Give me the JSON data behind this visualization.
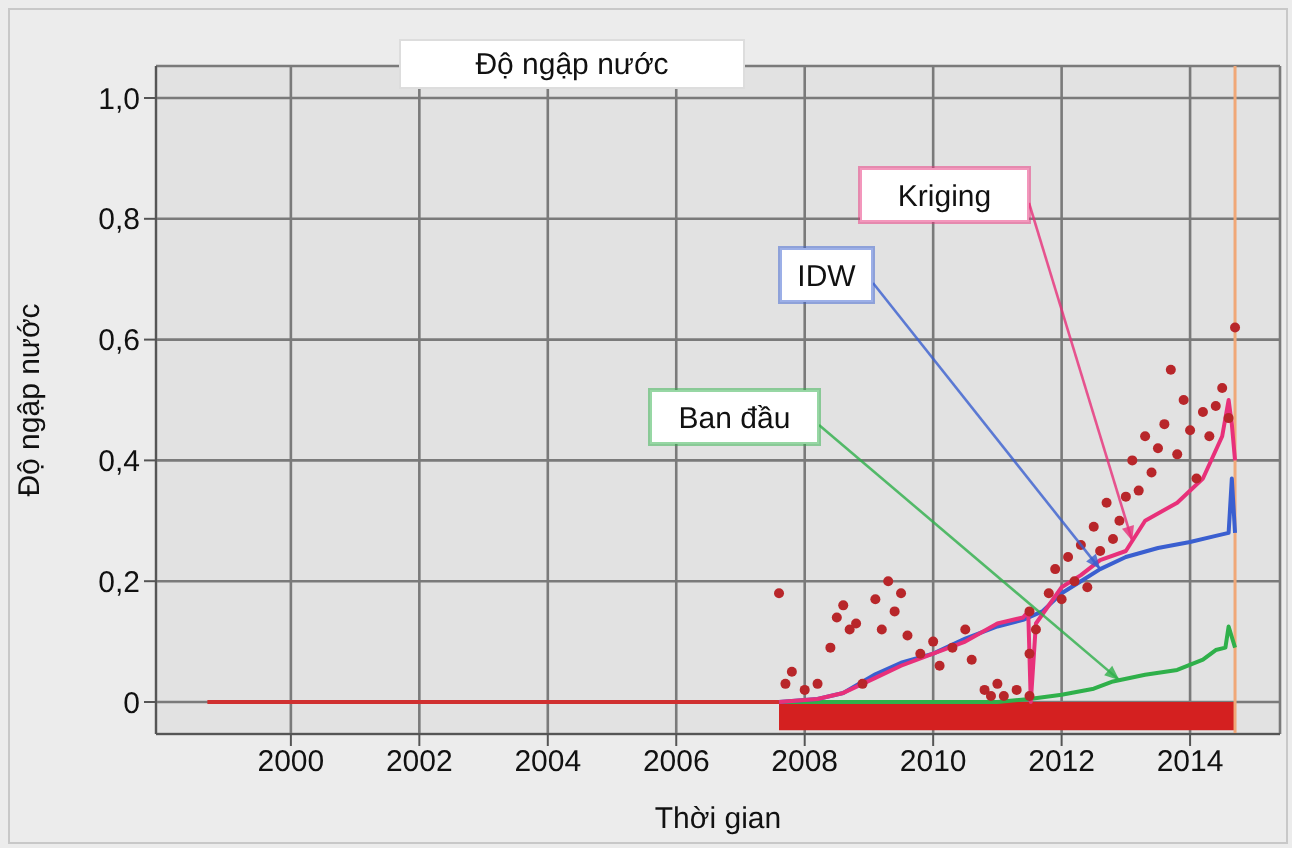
{
  "chart_data": {
    "type": "line",
    "title": "Độ ngập nước",
    "xlabel": "Thời gian",
    "ylabel": "Độ ngập nước",
    "xlim": [
      1997.9,
      2015.4
    ],
    "ylim": [
      -0.053,
      1.053
    ],
    "xticks": [
      2000,
      2002,
      2004,
      2006,
      2008,
      2010,
      2012,
      2014
    ],
    "yticks": [
      0,
      {
        "value": 0.2,
        "label": "0,2"
      },
      {
        "value": 0.4,
        "label": "0,4"
      },
      {
        "value": 0.6,
        "label": "0,6"
      },
      {
        "value": 0.8,
        "label": "0,8"
      },
      {
        "value": 1,
        "label": "1,0"
      }
    ],
    "grid": true,
    "ref_lines": [
      {
        "axis": "x",
        "value": 2014.7,
        "color": "#f0a878"
      }
    ],
    "series": [
      {
        "type": "line",
        "color": "#d03030",
        "x": [
          1998.7,
          2007.6
        ],
        "values": [
          0,
          0
        ]
      },
      {
        "type": "area",
        "color": "#d42020",
        "x": [
          2007.6,
          2014.7
        ],
        "values": [
          -0.045,
          -0.045
        ]
      },
      {
        "name": "Ban đầu",
        "color": "#2fb04a",
        "x": [
          2007.6,
          2009,
          2010,
          2011,
          2011.5,
          2012,
          2012.5,
          2012.8,
          2013.3,
          2013.8,
          2014.2,
          2014.4,
          2014.55,
          2014.6,
          2014.7
        ],
        "values": [
          0,
          0,
          0,
          0,
          0.005,
          0.012,
          0.022,
          0.034,
          0.045,
          0.053,
          0.07,
          0.086,
          0.09,
          0.125,
          0.09
        ]
      },
      {
        "name": "IDW",
        "color": "#3a5fd0",
        "x": [
          2007.6,
          2008.2,
          2008.6,
          2009.1,
          2009.5,
          2010,
          2010.5,
          2011,
          2011.4,
          2011.7,
          2012,
          2012.3,
          2012.6,
          2013,
          2013.5,
          2014,
          2014.4,
          2014.6,
          2014.65,
          2014.7
        ],
        "values": [
          0,
          0.005,
          0.015,
          0.046,
          0.065,
          0.08,
          0.105,
          0.125,
          0.136,
          0.15,
          0.18,
          0.2,
          0.22,
          0.24,
          0.255,
          0.265,
          0.275,
          0.28,
          0.37,
          0.28
        ]
      },
      {
        "name": "Kriging",
        "color": "#e8307a",
        "x": [
          2007.6,
          2008.2,
          2008.6,
          2009.1,
          2009.5,
          2010,
          2010.5,
          2011,
          2011.4,
          2011.48,
          2011.52,
          2011.6,
          2012,
          2012.3,
          2012.6,
          2013,
          2013.3,
          2013.8,
          2014.2,
          2014.5,
          2014.6,
          2014.65,
          2014.7
        ],
        "values": [
          0,
          0.005,
          0.015,
          0.04,
          0.06,
          0.08,
          0.1,
          0.13,
          0.14,
          0.15,
          0,
          0.13,
          0.19,
          0.21,
          0.235,
          0.25,
          0.3,
          0.33,
          0.37,
          0.44,
          0.5,
          0.46,
          0.4
        ]
      },
      {
        "type": "scatter",
        "color": "#b8262a",
        "x": [
          2007.6,
          2007.7,
          2007.8,
          2008,
          2008.2,
          2008.4,
          2008.5,
          2008.6,
          2008.7,
          2008.8,
          2008.9,
          2009.1,
          2009.2,
          2009.3,
          2009.4,
          2009.5,
          2009.6,
          2009.8,
          2010,
          2010.1,
          2010.3,
          2010.5,
          2010.6,
          2010.8,
          2010.9,
          2011,
          2011.1,
          2011.3,
          2011.5,
          2011.5,
          2011.5,
          2011.6,
          2011.8,
          2011.9,
          2012,
          2012.1,
          2012.2,
          2012.3,
          2012.4,
          2012.5,
          2012.6,
          2012.7,
          2012.8,
          2012.9,
          2013,
          2013.1,
          2013.2,
          2013.3,
          2013.4,
          2013.5,
          2013.6,
          2013.7,
          2013.8,
          2013.9,
          2014,
          2014.1,
          2014.2,
          2014.3,
          2014.4,
          2014.5,
          2014.6,
          2014.7
        ],
        "values": [
          0.18,
          0.03,
          0.05,
          0.02,
          0.03,
          0.09,
          0.14,
          0.16,
          0.12,
          0.13,
          0.03,
          0.17,
          0.12,
          0.2,
          0.15,
          0.18,
          0.11,
          0.08,
          0.1,
          0.06,
          0.09,
          0.12,
          0.07,
          0.02,
          0.01,
          0.03,
          0.01,
          0.02,
          0.15,
          0.08,
          0.01,
          0.12,
          0.18,
          0.22,
          0.17,
          0.24,
          0.2,
          0.26,
          0.19,
          0.29,
          0.25,
          0.33,
          0.27,
          0.3,
          0.34,
          0.4,
          0.35,
          0.44,
          0.38,
          0.42,
          0.46,
          0.55,
          0.41,
          0.5,
          0.45,
          0.37,
          0.48,
          0.44,
          0.49,
          0.52,
          0.47,
          0.62
        ]
      }
    ]
  }
}
